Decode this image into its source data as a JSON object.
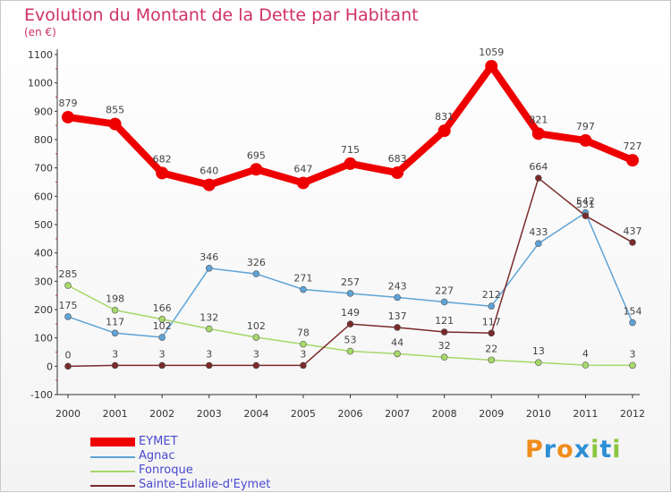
{
  "title": "Evolution du Montant de la Dette par Habitant",
  "unit": "(en €)",
  "logo": {
    "letters": [
      "P",
      "r",
      "o",
      "x",
      "i",
      "t",
      "i"
    ],
    "colors": [
      "#f08c1c",
      "#2c8fd6",
      "#f08c1c",
      "#2c8fd6",
      "#8cc63e",
      "#2c8fd6",
      "#8cc63e"
    ]
  },
  "chart_data": {
    "type": "line",
    "x": [
      "2000",
      "2001",
      "2002",
      "2003",
      "2004",
      "2005",
      "2006",
      "2007",
      "2008",
      "2009",
      "2010",
      "2011",
      "2012"
    ],
    "ylim": [
      -100,
      1100
    ],
    "yticks": [
      "-100",
      "0",
      "100",
      "200",
      "300",
      "400",
      "500",
      "600",
      "700",
      "800",
      "900",
      "1000",
      "1100"
    ],
    "grid": false,
    "legend_position": "bottom-left",
    "series": [
      {
        "name": "EYMET",
        "color": "#ee0000",
        "values": [
          879,
          855,
          682,
          640,
          695,
          647,
          715,
          683,
          831,
          1059,
          821,
          797,
          727
        ],
        "labels": [
          "879",
          "855",
          "682",
          "640",
          "695",
          "647",
          "715",
          "683",
          "831",
          "1059",
          "821",
          "797",
          "727"
        ]
      },
      {
        "name": "Agnac",
        "color": "#5ea3d6",
        "values": [
          175,
          117,
          102,
          346,
          326,
          271,
          257,
          243,
          227,
          212,
          433,
          542,
          154
        ],
        "labels": [
          "175",
          "117",
          "102",
          "346",
          "326",
          "271",
          "257",
          "243",
          "227",
          "212",
          "433",
          "542",
          "154"
        ]
      },
      {
        "name": "Fonroque",
        "color": "#a6d86a",
        "values": [
          285,
          198,
          166,
          132,
          102,
          78,
          53,
          44,
          32,
          22,
          13,
          4,
          3
        ],
        "labels": [
          "285",
          "198",
          "166",
          "132",
          "102",
          "78",
          "53",
          "44",
          "32",
          "22",
          "13",
          "4",
          "3"
        ]
      },
      {
        "name": "Sainte-Eulalie-d'Eymet",
        "color": "#7a2a2a",
        "values": [
          0,
          3,
          3,
          3,
          3,
          3,
          149,
          137,
          121,
          117,
          664,
          531,
          437
        ],
        "labels": [
          "0",
          "3",
          "3",
          "3",
          "3",
          "3",
          "149",
          "137",
          "121",
          "117",
          "664",
          "531",
          "437"
        ]
      }
    ]
  }
}
